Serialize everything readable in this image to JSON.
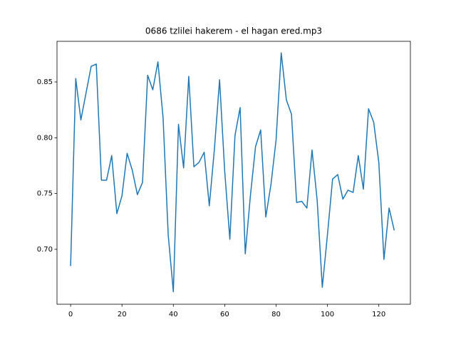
{
  "chart_data": {
    "type": "line",
    "title": "0686 tzlilei hakerem - el hagan ered.mp3",
    "x": [
      0,
      2,
      4,
      6,
      8,
      10,
      12,
      14,
      16,
      18,
      20,
      22,
      24,
      26,
      28,
      30,
      32,
      34,
      36,
      38,
      40,
      42,
      44,
      46,
      48,
      50,
      52,
      54,
      56,
      58,
      60,
      62,
      64,
      66,
      68,
      70,
      72,
      74,
      76,
      78,
      80,
      82,
      84,
      86,
      88,
      90,
      92,
      94,
      96,
      98,
      100,
      102,
      104,
      106,
      108,
      110,
      112,
      114,
      116,
      118,
      120,
      122,
      124,
      126
    ],
    "values": [
      0.685,
      0.853,
      0.816,
      0.84,
      0.864,
      0.866,
      0.762,
      0.762,
      0.784,
      0.732,
      0.748,
      0.786,
      0.771,
      0.749,
      0.76,
      0.856,
      0.843,
      0.868,
      0.818,
      0.713,
      0.662,
      0.812,
      0.773,
      0.855,
      0.774,
      0.778,
      0.787,
      0.739,
      0.79,
      0.852,
      0.77,
      0.709,
      0.802,
      0.827,
      0.696,
      0.748,
      0.792,
      0.807,
      0.729,
      0.758,
      0.798,
      0.876,
      0.834,
      0.821,
      0.742,
      0.743,
      0.737,
      0.789,
      0.744,
      0.666,
      0.713,
      0.763,
      0.767,
      0.745,
      0.753,
      0.751,
      0.784,
      0.754,
      0.826,
      0.814,
      0.778,
      0.691,
      0.737,
      0.717
    ],
    "color": "#1f77b4",
    "xlim": [
      -5.3,
      132.3
    ],
    "xticks": [
      0,
      20,
      40,
      60,
      80,
      100,
      120
    ],
    "ylim": [
      0.6508,
      0.8864
    ],
    "yticks": [
      {
        "value": 0.7,
        "label": "0.70"
      },
      0.75,
      {
        "value": 0.8,
        "label": "0.80"
      },
      0.85
    ],
    "grid": false
  }
}
